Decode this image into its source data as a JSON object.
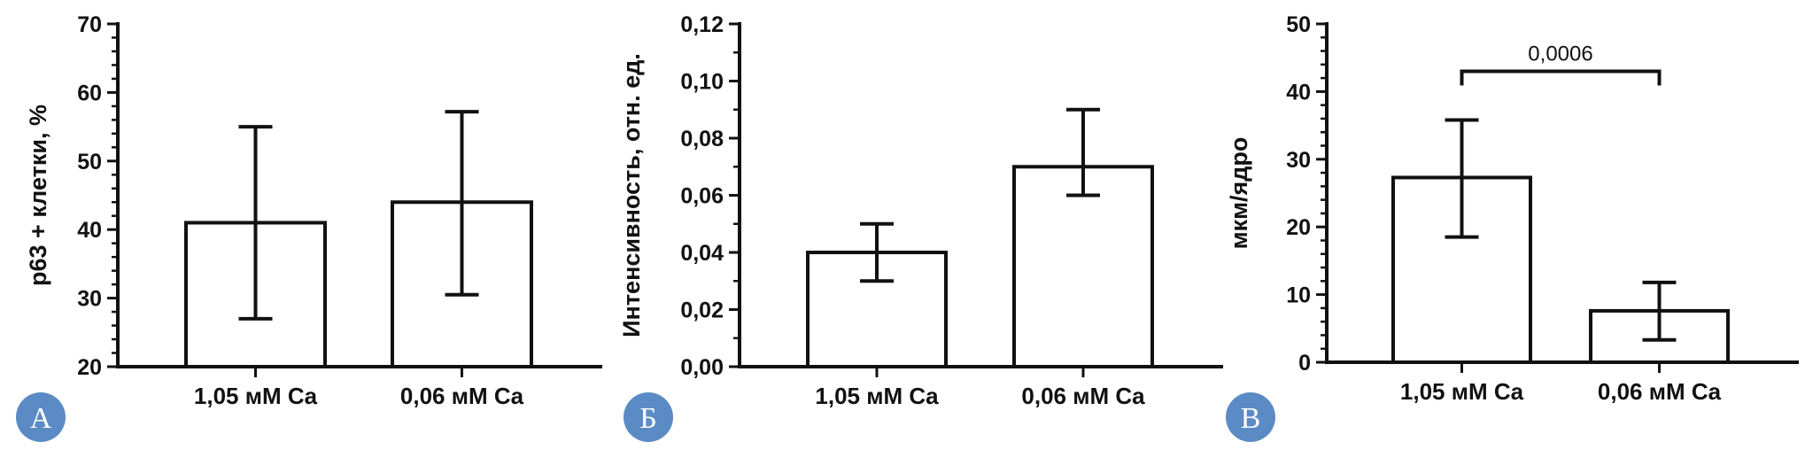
{
  "chart_data": [
    {
      "type": "bar",
      "panel_label": "А",
      "categories": [
        "1,05 мМ Ca",
        "0,06 мМ Ca"
      ],
      "values": [
        41,
        44
      ],
      "error_low": [
        27,
        30.5
      ],
      "error_high": [
        55,
        57.2
      ],
      "ylabel": "p63 + клетки, %",
      "ylim": [
        20,
        70
      ],
      "yticks": [
        20,
        30,
        40,
        50,
        60,
        70
      ],
      "ytick_labels": [
        "20",
        "30",
        "40",
        "50",
        "60",
        "70"
      ],
      "minor_per_major": 5
    },
    {
      "type": "bar",
      "panel_label": "Б",
      "categories": [
        "1,05 мМ Ca",
        "0,06 мМ Ca"
      ],
      "values": [
        0.04,
        0.07
      ],
      "error_low": [
        0.03,
        0.06
      ],
      "error_high": [
        0.05,
        0.09
      ],
      "ylabel": "Интенсивность, отн. ед.",
      "ylim": [
        0,
        0.12
      ],
      "yticks": [
        0,
        0.02,
        0.04,
        0.06,
        0.08,
        0.1,
        0.12
      ],
      "ytick_labels": [
        "0,00",
        "0,02",
        "0,04",
        "0,06",
        "0,08",
        "0,10",
        "0,12"
      ],
      "minor_per_major": 2
    },
    {
      "type": "bar",
      "panel_label": "В",
      "categories": [
        "1,05 мМ Ca",
        "0,06 мМ Ca"
      ],
      "values": [
        27.3,
        7.6
      ],
      "error_low": [
        18.5,
        3.3
      ],
      "error_high": [
        35.8,
        11.8
      ],
      "ylabel": "мкм/ядро",
      "ylim": [
        0,
        50
      ],
      "yticks": [
        0,
        10,
        20,
        30,
        40,
        50
      ],
      "ytick_labels": [
        "0",
        "10",
        "20",
        "30",
        "40",
        "50"
      ],
      "minor_per_major": 5,
      "significance": {
        "label": "0,0006",
        "level": 43
      }
    }
  ],
  "colors": {
    "badge": "#5b8bc4",
    "ink": "#111111",
    "bar_fill": "#ffffff"
  }
}
